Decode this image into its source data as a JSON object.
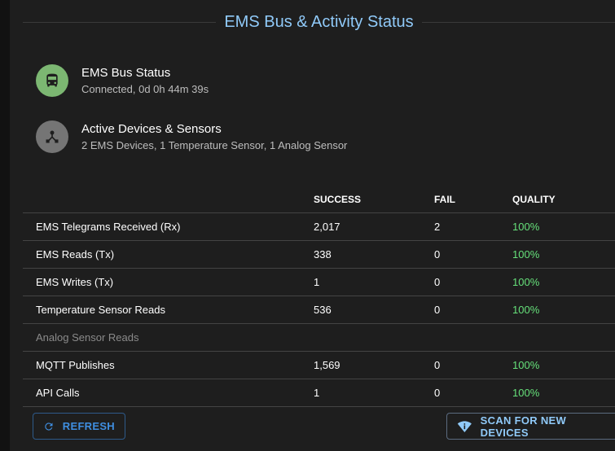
{
  "title": "EMS Bus & Activity Status",
  "status_items": [
    {
      "title": "EMS Bus Status",
      "subtitle": "Connected, 0d 0h 44m 39s",
      "icon": "bus-icon",
      "color": "#7cb772"
    },
    {
      "title": "Active Devices & Sensors",
      "subtitle": "2 EMS Devices, 1 Temperature Sensor, 1 Analog Sensor",
      "icon": "device-hub-icon",
      "color": "#757575"
    }
  ],
  "table": {
    "headers": [
      "",
      "SUCCESS",
      "FAIL",
      "QUALITY"
    ],
    "rows": [
      {
        "label": "EMS Telegrams Received (Rx)",
        "success": "2,017",
        "fail": "2",
        "quality": "100%"
      },
      {
        "label": "EMS Reads (Tx)",
        "success": "338",
        "fail": "0",
        "quality": "100%"
      },
      {
        "label": "EMS Writes (Tx)",
        "success": "1",
        "fail": "0",
        "quality": "100%"
      },
      {
        "label": "Temperature Sensor Reads",
        "success": "536",
        "fail": "0",
        "quality": "100%"
      },
      {
        "label": "Analog Sensor Reads",
        "success": "",
        "fail": "",
        "quality": ""
      },
      {
        "label": "MQTT Publishes",
        "success": "1,569",
        "fail": "0",
        "quality": "100%"
      },
      {
        "label": "API Calls",
        "success": "1",
        "fail": "0",
        "quality": "100%"
      }
    ]
  },
  "buttons": {
    "refresh": "REFRESH",
    "scan": "SCAN FOR NEW DEVICES"
  },
  "colors": {
    "accent": "#90caf9",
    "quality": "#66e07a"
  }
}
